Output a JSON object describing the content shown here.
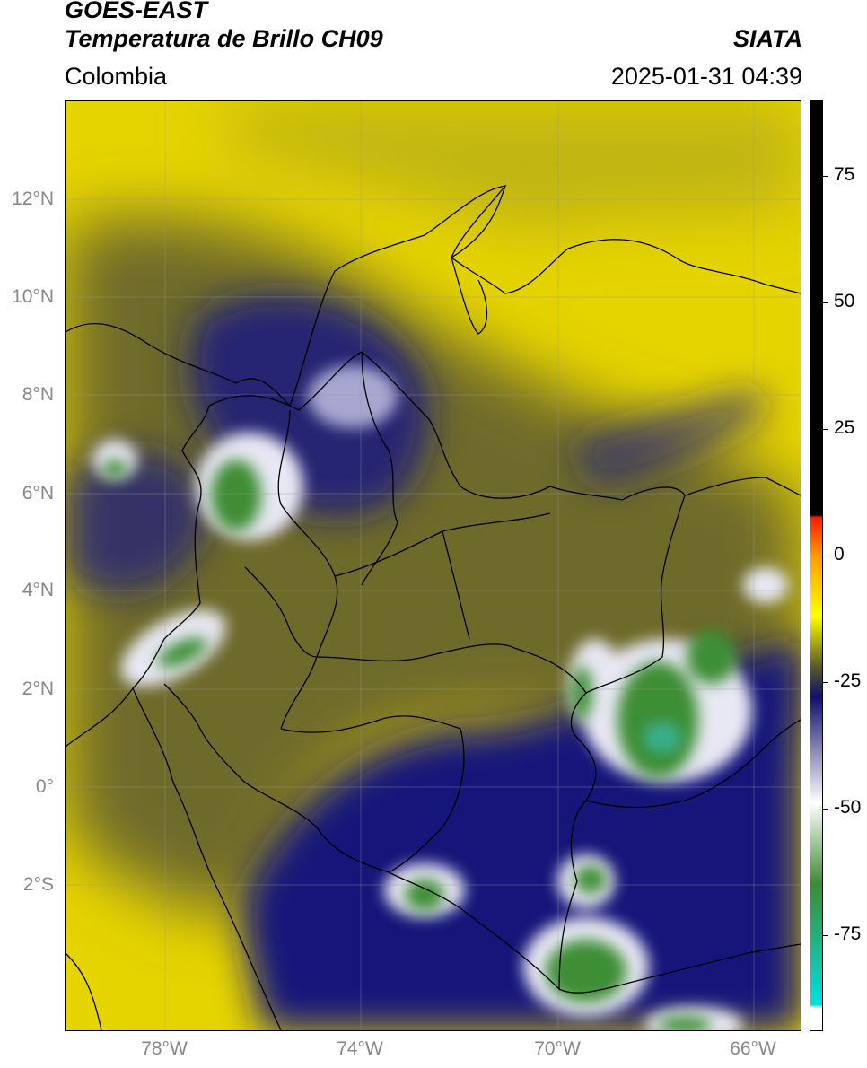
{
  "header": {
    "satellite": "GOES-EAST",
    "product": "Temperatura de Brillo CH09",
    "region": "Colombia",
    "agency": "SIATA",
    "datetime": "2025-01-31 04:39"
  },
  "map": {
    "lat_labels": [
      "12°N",
      "10°N",
      "8°N",
      "6°N",
      "4°N",
      "2°N",
      "0°",
      "2°S"
    ],
    "lon_labels": [
      "78°W",
      "74°W",
      "70°W",
      "66°W"
    ],
    "extent": {
      "lon_min": -80,
      "lon_max": -65,
      "lat_min": -5.0,
      "lat_max": 14
    },
    "gridlines": true
  },
  "colorbar": {
    "tick_labels": [
      "75",
      "50",
      "25",
      "0",
      "-25",
      "-50",
      "-75"
    ],
    "tick_values": [
      75,
      50,
      25,
      0,
      -25,
      -50,
      -75
    ],
    "range": [
      -94,
      90
    ],
    "colors": {
      "black": "#000000",
      "red": "#ff1a00",
      "orange": "#ff9900",
      "yellow": "#ffff00",
      "olive": "#5a5a28",
      "navy": "#10106e",
      "white": "#ffffff",
      "green": "#3c8c32",
      "cyan": "#00e0e0"
    }
  }
}
